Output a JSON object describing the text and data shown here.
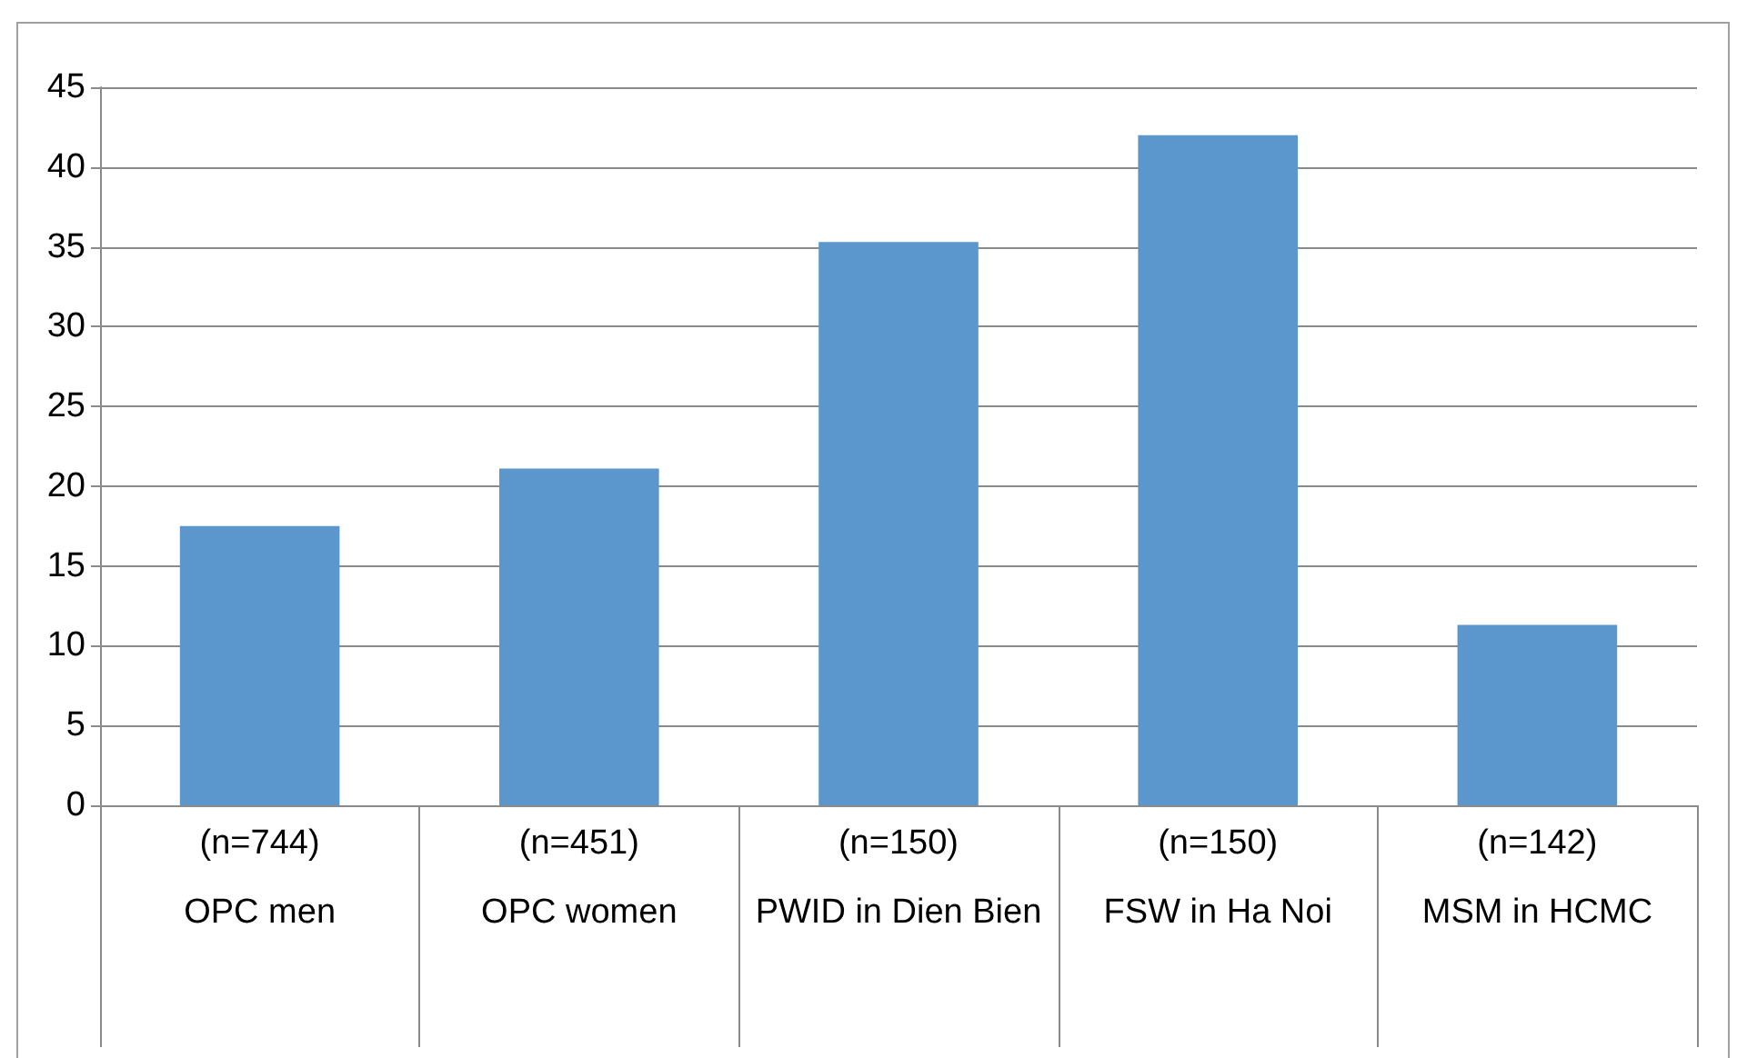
{
  "chart_data": {
    "type": "bar",
    "categories": [
      "(n=744)\nOPC men",
      "(n=451)\nOPC women",
      "(n=150)\nPWID in Dien Bien",
      "(n=150)\nFSW in Ha Noi",
      "(n=142)\nMSM in HCMC"
    ],
    "values": [
      17.5,
      21.1,
      35.3,
      42,
      11.3
    ],
    "color": "#5b96cc",
    "ylim": [
      0,
      45
    ],
    "yticks": [
      0,
      5,
      10,
      15,
      20,
      25,
      30,
      35,
      40,
      45
    ],
    "grid": "y"
  }
}
